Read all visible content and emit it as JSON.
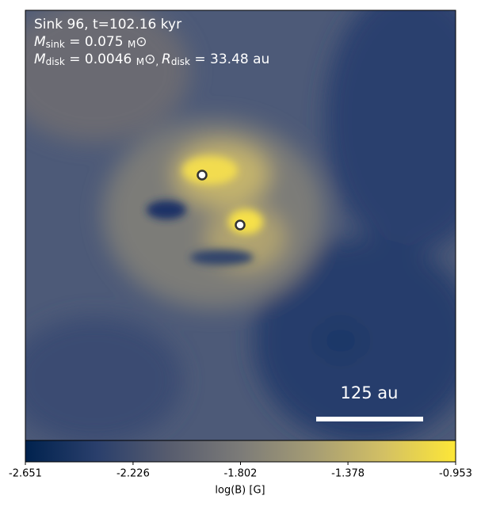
{
  "chart_data": {
    "type": "colormap-image",
    "annotation_lines": [
      [
        "Sink 96, t=102.16 kyr"
      ],
      [
        "M",
        "sink",
        " = 0.075 ",
        "M",
        "⊙"
      ],
      [
        "M",
        "disk",
        " = 0.0046 ",
        "M",
        "⊙",
        ", ",
        "R",
        "disk",
        " = 33.48 au"
      ]
    ],
    "scale_bar_label": "125 au",
    "colorbar": {
      "label": "log(B) [G]",
      "clim": [
        -2.651,
        -0.953
      ],
      "ticks": [
        -2.651,
        -2.226,
        -1.802,
        -1.378,
        -0.953
      ],
      "colors": [
        "#00224e",
        "#2a3f6c",
        "#575c6e",
        "#7c7b78",
        "#a59c74",
        "#d3c064",
        "#fde737"
      ]
    }
  }
}
